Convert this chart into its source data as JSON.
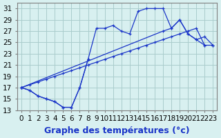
{
  "title": "Graphe des températures (°c)",
  "hours": [
    0,
    1,
    2,
    3,
    4,
    5,
    6,
    7,
    8,
    9,
    10,
    11,
    12,
    13,
    14,
    15,
    16,
    17,
    18,
    19,
    20,
    21,
    22,
    23
  ],
  "curve_zigzag": [
    17.0,
    16.5,
    15.5,
    15.0,
    14.5,
    13.5,
    13.5,
    17.0,
    22.0,
    27.5,
    27.5,
    28.0,
    27.0,
    26.5,
    30.5,
    31.0,
    31.0,
    31.0,
    27.5,
    29.0,
    26.5,
    25.5,
    24.5,
    null
  ],
  "curve_smooth": [
    17.0,
    null,
    null,
    null,
    null,
    null,
    null,
    null,
    null,
    null,
    null,
    null,
    null,
    null,
    null,
    null,
    null,
    27.0,
    27.5,
    29.0,
    26.5,
    25.5,
    26.0,
    24.5
  ],
  "curve_dip": [
    17.0,
    16.5,
    15.5,
    15.0,
    14.5,
    13.5,
    13.5,
    17.0,
    22.0,
    null,
    null,
    null,
    null,
    null,
    null,
    null,
    null,
    null,
    null,
    null,
    null,
    null,
    null,
    null
  ],
  "curve_straight": [
    17.0,
    17.5,
    18.0,
    18.5,
    19.0,
    19.5,
    20.0,
    20.5,
    21.0,
    21.5,
    22.0,
    22.5,
    23.0,
    23.5,
    24.0,
    24.5,
    25.0,
    25.5,
    26.0,
    26.5,
    27.0,
    27.5,
    24.5,
    24.5
  ],
  "line_color": "#1a35c8",
  "bg_color": "#d8f0f0",
  "grid_color": "#aacccc",
  "ylim": [
    13,
    32
  ],
  "yticks": [
    13,
    15,
    17,
    19,
    21,
    23,
    25,
    27,
    29,
    31
  ],
  "xlabel_fontsize": 9,
  "tick_fontsize": 7.5
}
